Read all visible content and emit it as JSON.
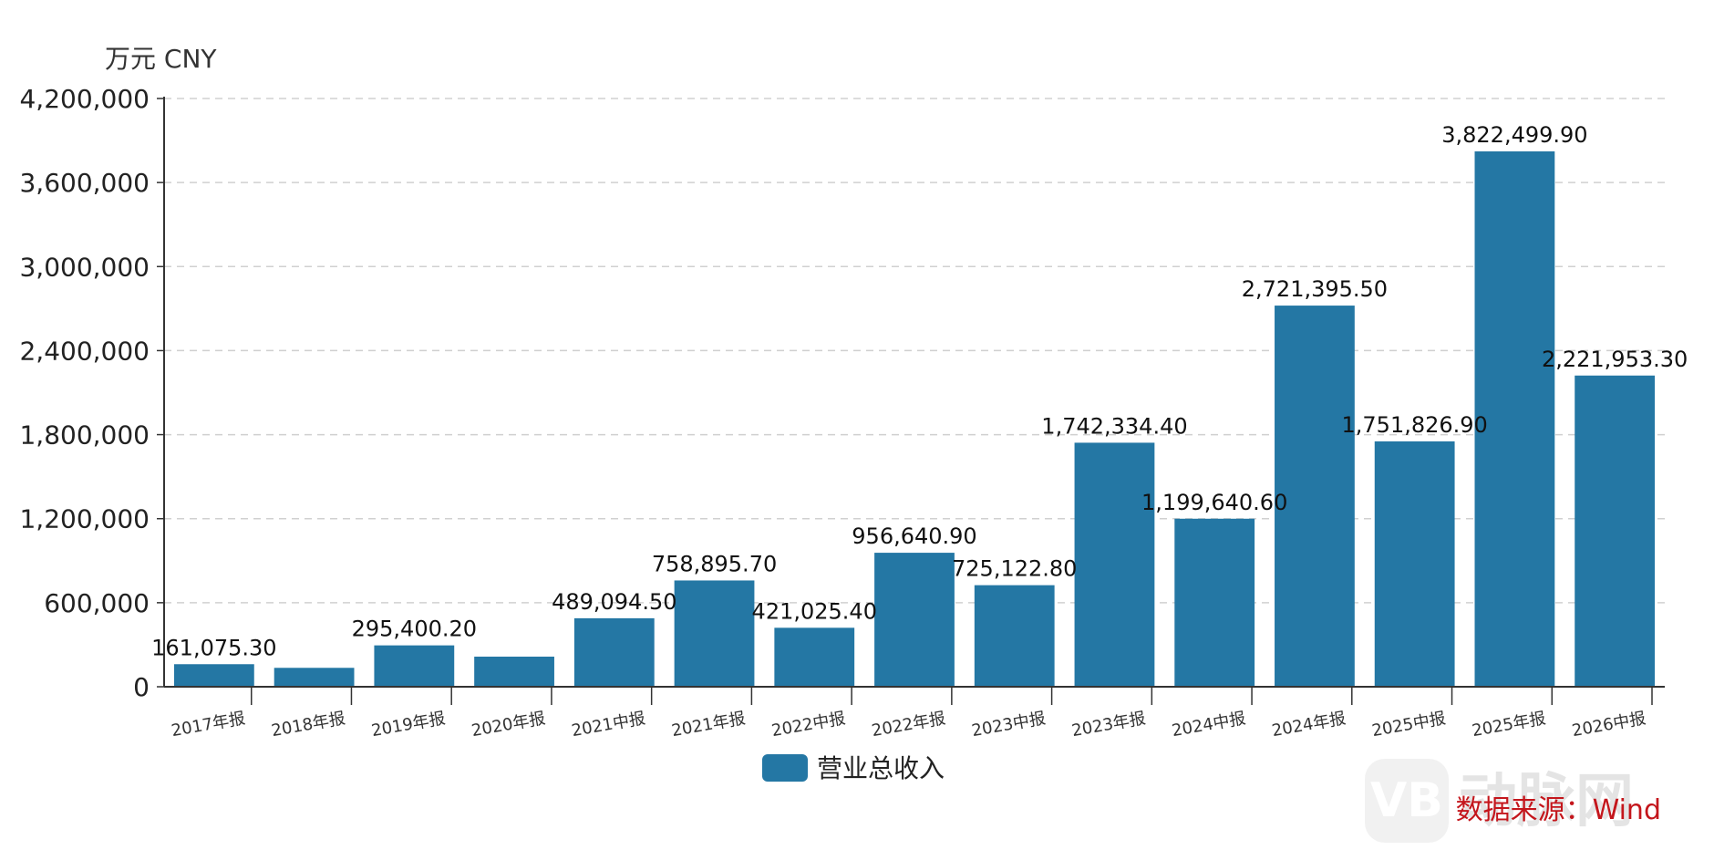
{
  "colors": {
    "bar": "#2477a4",
    "grid": "#d0d0d0",
    "axis": "#333333",
    "source": "#c4161c"
  },
  "watermark": {
    "text": "动脉网",
    "icon": "vb-logo-icon"
  },
  "source_text": "数据来源：Wind",
  "chart_data": {
    "type": "bar",
    "unit_label": "万元  CNY",
    "title": "",
    "xlabel": "",
    "ylabel": "",
    "ylim": [
      0,
      4200000
    ],
    "yticks": [
      0,
      600000,
      1200000,
      1800000,
      2400000,
      3000000,
      3600000,
      4200000
    ],
    "ytick_labels": [
      "0",
      "600,000",
      "1,200,000",
      "1,800,000",
      "2,400,000",
      "3,000,000",
      "3,600,000",
      "4,200,000"
    ],
    "grid": true,
    "legend_position": "bottom-center",
    "categories": [
      "2017年报",
      "2018年报",
      "2019年报",
      "2020年报",
      "2021中报",
      "2021年报",
      "2022中报",
      "2022年报",
      "2023中报",
      "2023年报",
      "2024中报",
      "2024年报",
      "2025中报",
      "2025年报",
      "2026中报"
    ],
    "series": [
      {
        "name": "营业总收入",
        "values": [
          161075.3,
          135000,
          295400.2,
          215000,
          489094.5,
          758895.7,
          421025.4,
          956640.9,
          725122.8,
          1742334.4,
          1199640.6,
          2721395.5,
          1751826.9,
          3822499.9,
          2221953.3
        ],
        "labels": [
          "161,075.30",
          "",
          "295,400.20",
          "",
          "489,094.50",
          "758,895.70",
          "421,025.40",
          "956,640.90",
          "725,122.80",
          "1,742,334.40",
          "1,199,640.60",
          "2,721,395.50",
          "1,751,826.90",
          "3,822,499.90",
          "2,221,953.30"
        ]
      }
    ]
  }
}
